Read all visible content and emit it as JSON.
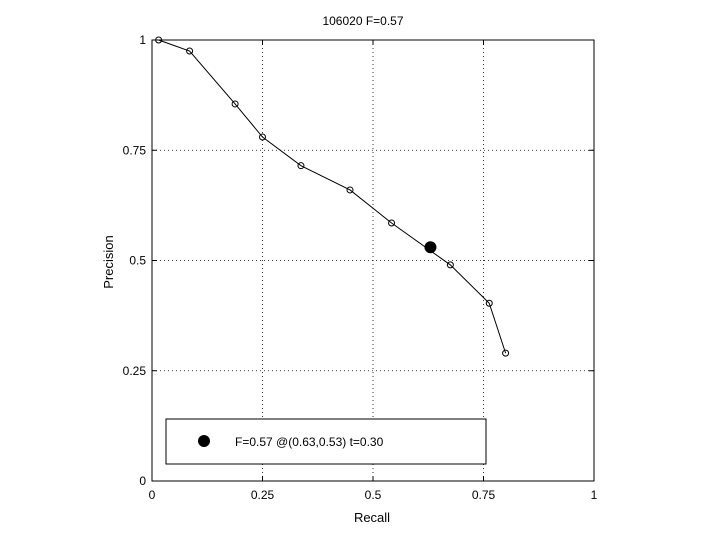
{
  "chart_data": {
    "type": "line",
    "title": "106020 F=0.57",
    "xlabel": "Recall",
    "ylabel": "Precision",
    "xlim": [
      0,
      1
    ],
    "ylim": [
      0,
      1
    ],
    "grid": true,
    "legend_position": "bottom",
    "x_ticks": [
      "0",
      "0.25",
      "0.5",
      "0.75",
      "1"
    ],
    "y_ticks": [
      "0",
      "0.25",
      "0.5",
      "0.75",
      "1"
    ],
    "series": [
      {
        "x": [
          0.015,
          0.085,
          0.188,
          0.25,
          0.337,
          0.448,
          0.542,
          0.675,
          0.763,
          0.8
        ],
        "y": [
          1.0,
          0.975,
          0.855,
          0.78,
          0.715,
          0.66,
          0.585,
          0.49,
          0.403,
          0.29
        ]
      }
    ],
    "highlight": {
      "x": 0.63,
      "y": 0.53
    },
    "legend_label": "F=0.57 @(0.63,0.53) t=0.30"
  }
}
